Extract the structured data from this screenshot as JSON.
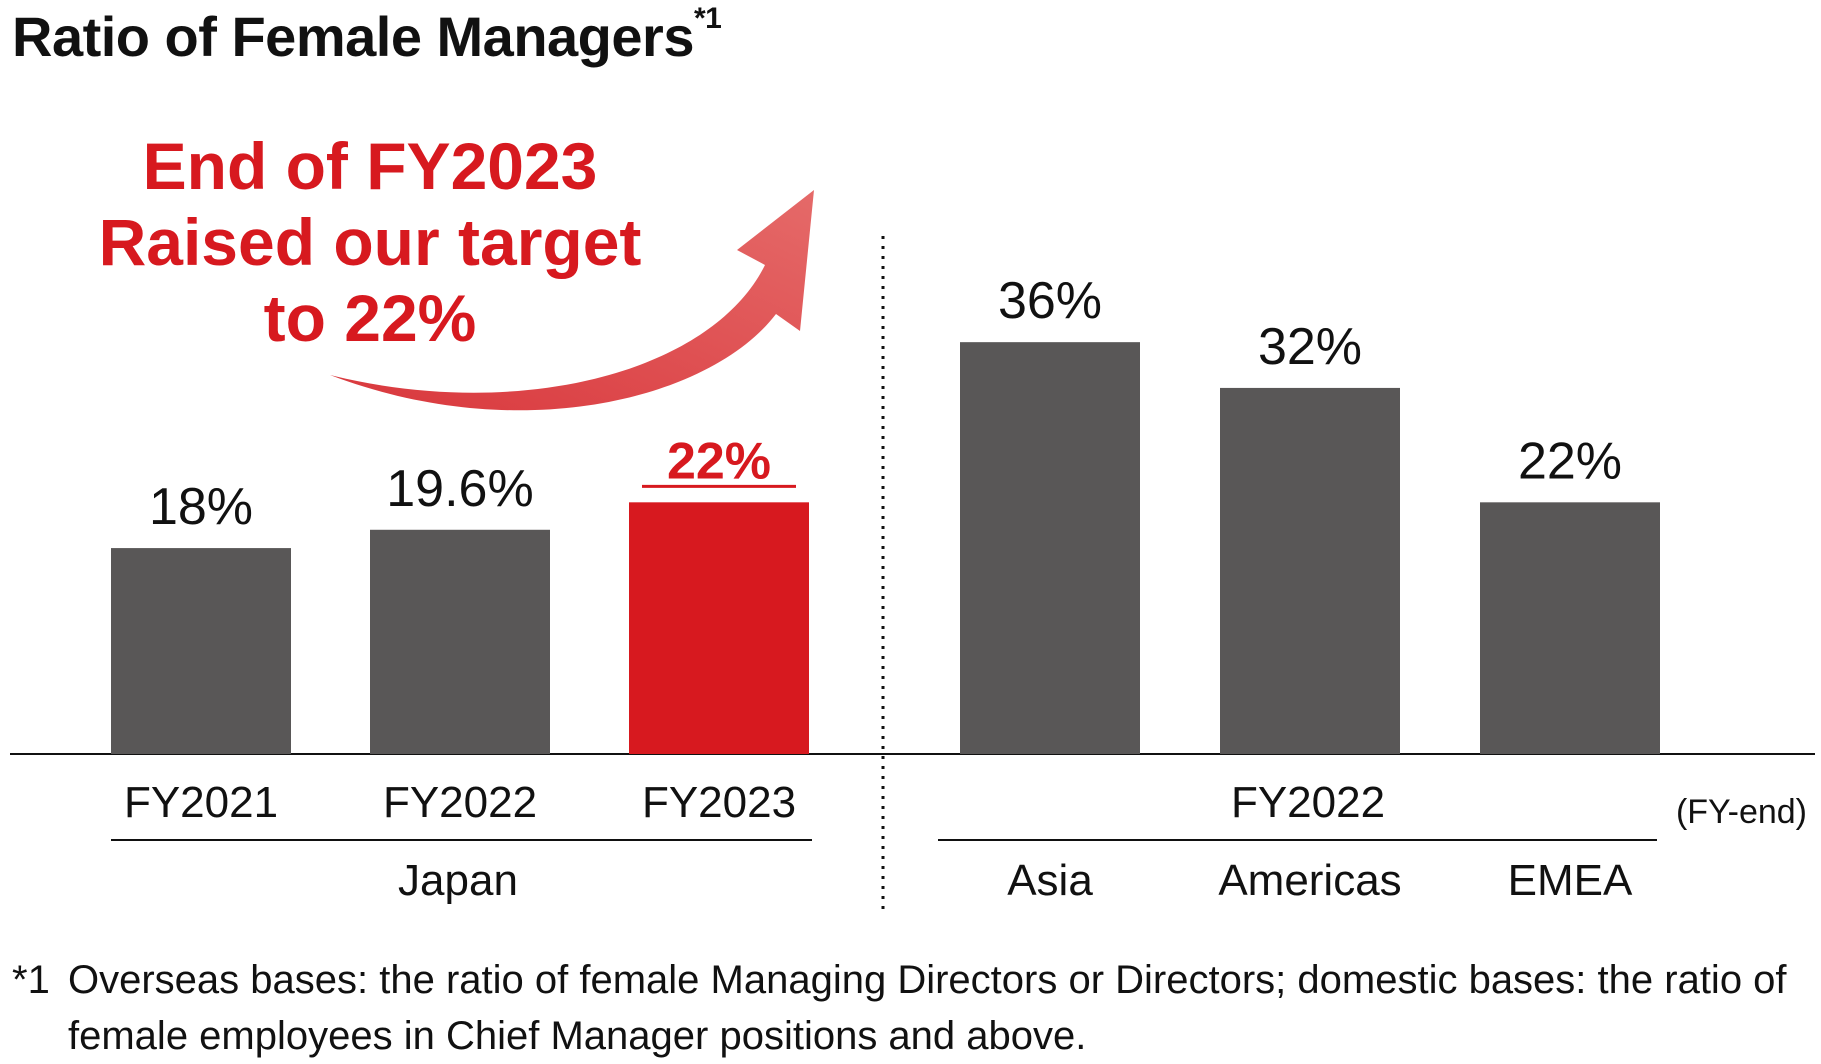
{
  "title": "Ratio of Female Managers",
  "title_note_mark": "*1",
  "callout": {
    "line1": "End of FY2023",
    "line2": "Raised our target",
    "line3": "to 22%"
  },
  "footnote": {
    "mark": "*1",
    "text": "Overseas bases: the ratio of female Managing Directors or Directors; domestic bases: the ratio of female employees in Chief Manager positions and above."
  },
  "colors": {
    "bar": "#595757",
    "highlight": "#d7191f",
    "arrow": "#e05a5a",
    "text": "#111111"
  },
  "chart_data": {
    "type": "bar",
    "unit": "%",
    "ylim": [
      0,
      40
    ],
    "grid": false,
    "axis_note": "(FY-end)",
    "groups": [
      {
        "name": "Japan",
        "categories": [
          "FY2021",
          "FY2022",
          "FY2023"
        ],
        "values": [
          18,
          19.6,
          22
        ],
        "labels": [
          "18%",
          "19.6%",
          "22%"
        ],
        "highlight_index": 2
      },
      {
        "name": "FY2022",
        "categories": [
          "Asia",
          "Americas",
          "EMEA"
        ],
        "values": [
          36,
          32,
          22
        ],
        "labels": [
          "36%",
          "32%",
          "22%"
        ]
      }
    ]
  }
}
